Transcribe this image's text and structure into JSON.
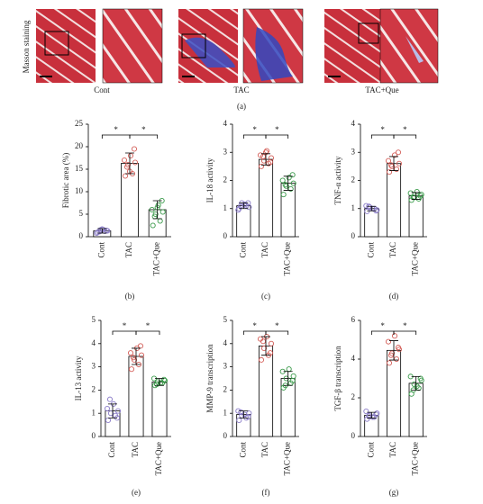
{
  "panel_a": {
    "ylabel": "Masson staining",
    "groups": [
      "Cont",
      "TAC",
      "TAC+Que"
    ],
    "label": "(a)"
  },
  "chart_data": [
    {
      "type": "bar",
      "panel": "(b)",
      "ylabel": "Fibrotic area (%)",
      "categories": [
        "Cont",
        "TAC",
        "TAC+Que"
      ],
      "values": [
        1.3,
        16.3,
        6.0
      ],
      "errors": [
        0.5,
        2.3,
        2.0
      ],
      "colors": [
        "#8a7cc8",
        "#d4605a",
        "#3a9a4a"
      ],
      "points": [
        [
          1.0,
          1.2,
          1.5,
          1.3,
          0.8,
          1.6,
          1.4,
          1.1,
          1.7
        ],
        [
          13.5,
          14.0,
          16.0,
          16.5,
          17.0,
          18.0,
          19.5,
          15.5,
          14.5
        ],
        [
          2.5,
          3.5,
          5.0,
          5.5,
          6.0,
          7.0,
          8.0,
          4.5,
          6.5
        ]
      ],
      "ylim": [
        0,
        25
      ],
      "yticks": [
        0,
        5,
        10,
        15,
        20,
        25
      ],
      "significance": [
        "*",
        "*"
      ]
    },
    {
      "type": "bar",
      "panel": "(c)",
      "ylabel": "IL-18 activity",
      "categories": [
        "Cont",
        "TAC",
        "TAC+Que"
      ],
      "values": [
        1.1,
        2.75,
        1.9
      ],
      "errors": [
        0.1,
        0.2,
        0.25
      ],
      "colors": [
        "#8a7cc8",
        "#d4605a",
        "#3a9a4a"
      ],
      "points": [
        [
          1.0,
          1.1,
          1.2,
          1.05,
          0.95,
          1.15,
          1.2,
          1.1
        ],
        [
          2.5,
          2.6,
          2.7,
          2.8,
          2.9,
          3.05,
          2.65,
          2.85,
          3.0
        ],
        [
          1.5,
          1.7,
          1.8,
          1.9,
          2.0,
          2.1,
          2.2,
          1.85
        ]
      ],
      "ylim": [
        0,
        4
      ],
      "yticks": [
        0,
        1,
        2,
        3,
        4
      ],
      "significance": [
        "*",
        "*"
      ]
    },
    {
      "type": "bar",
      "panel": "(d)",
      "ylabel": "TNF-α activity",
      "categories": [
        "Cont",
        "TAC",
        "TAC+Que"
      ],
      "values": [
        1.0,
        2.6,
        1.45
      ],
      "errors": [
        0.08,
        0.25,
        0.12
      ],
      "colors": [
        "#8a7cc8",
        "#d4605a",
        "#3a9a4a"
      ],
      "points": [
        [
          0.9,
          1.0,
          1.05,
          0.95,
          1.1,
          1.0,
          0.92,
          1.08
        ],
        [
          2.3,
          2.4,
          2.5,
          2.6,
          2.7,
          2.9,
          3.0,
          2.55
        ],
        [
          1.3,
          1.35,
          1.4,
          1.5,
          1.55,
          1.6,
          1.45,
          1.4
        ]
      ],
      "ylim": [
        0,
        4
      ],
      "yticks": [
        0,
        1,
        2,
        3,
        4
      ],
      "significance": [
        "*",
        "*"
      ]
    },
    {
      "type": "bar",
      "panel": "(e)",
      "ylabel": "IL-13 activity",
      "categories": [
        "Cont",
        "TAC",
        "TAC+Que"
      ],
      "values": [
        1.1,
        3.45,
        2.35
      ],
      "errors": [
        0.3,
        0.35,
        0.15
      ],
      "colors": [
        "#8a7cc8",
        "#d4605a",
        "#3a9a4a"
      ],
      "points": [
        [
          0.7,
          0.9,
          1.0,
          1.1,
          1.2,
          1.4,
          0.8,
          1.6
        ],
        [
          2.9,
          3.1,
          3.3,
          3.5,
          3.6,
          3.8,
          3.9,
          3.4
        ],
        [
          2.2,
          2.3,
          2.35,
          2.4,
          2.5,
          2.3,
          2.45,
          2.25
        ]
      ],
      "ylim": [
        0,
        5
      ],
      "yticks": [
        0,
        1,
        2,
        3,
        4,
        5
      ],
      "significance": [
        "*",
        "*"
      ]
    },
    {
      "type": "bar",
      "panel": "(f)",
      "ylabel": "MMP-9 transcription",
      "categories": [
        "Cont",
        "TAC",
        "TAC+Que"
      ],
      "values": [
        0.95,
        3.9,
        2.5
      ],
      "errors": [
        0.15,
        0.4,
        0.3
      ],
      "colors": [
        "#8a7cc8",
        "#d4605a",
        "#3a9a4a"
      ],
      "points": [
        [
          0.7,
          0.8,
          0.9,
          1.0,
          1.1,
          0.95,
          0.85,
          1.05
        ],
        [
          3.3,
          3.5,
          3.8,
          4.0,
          4.2,
          4.3,
          3.6,
          4.1
        ],
        [
          2.1,
          2.3,
          2.5,
          2.6,
          2.8,
          2.9,
          2.4,
          2.2
        ]
      ],
      "ylim": [
        0,
        5
      ],
      "yticks": [
        0,
        1,
        2,
        3,
        4,
        5
      ],
      "significance": [
        "*",
        "*"
      ]
    },
    {
      "type": "bar",
      "panel": "(g)",
      "ylabel": "TGF-β transcription",
      "categories": [
        "Cont",
        "TAC",
        "TAC+Que"
      ],
      "values": [
        1.1,
        4.45,
        2.75
      ],
      "errors": [
        0.15,
        0.5,
        0.35
      ],
      "colors": [
        "#8a7cc8",
        "#d4605a",
        "#3a9a4a"
      ],
      "points": [
        [
          0.9,
          1.0,
          1.1,
          1.2,
          1.3,
          1.0,
          1.15,
          1.05
        ],
        [
          3.8,
          4.0,
          4.3,
          4.5,
          4.9,
          5.2,
          4.6,
          4.2
        ],
        [
          2.2,
          2.5,
          2.7,
          2.9,
          3.1,
          2.6,
          3.0,
          2.4
        ]
      ],
      "ylim": [
        0,
        6
      ],
      "yticks": [
        0,
        2,
        4,
        6
      ],
      "significance": [
        "*",
        "*"
      ]
    }
  ]
}
